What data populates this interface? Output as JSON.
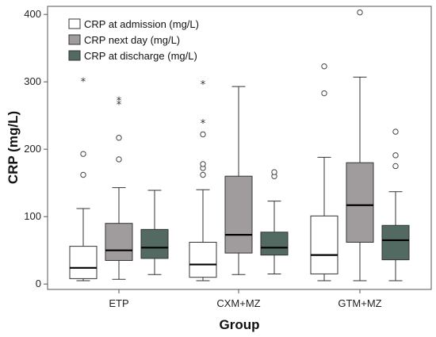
{
  "chart_data": {
    "type": "boxplot",
    "xlabel": "Group",
    "ylabel": "CRP (mg/L)",
    "ylim": [
      -8,
      412
    ],
    "yticks": [
      0,
      100,
      200,
      300,
      400
    ],
    "categories": [
      "ETP",
      "CXM+MZ",
      "GTM+MZ"
    ],
    "legend_position": "top-left",
    "grid": false,
    "series": [
      {
        "name": "CRP at admission (mg/L)",
        "color": "#ffffff",
        "boxes": [
          {
            "min": 5,
            "q1": 8,
            "median": 24,
            "q3": 56,
            "max": 112,
            "outliers": [
              162,
              193
            ],
            "extremes": [
              302
            ]
          },
          {
            "min": 5,
            "q1": 10,
            "median": 29,
            "q3": 62,
            "max": 140,
            "outliers": [
              162,
              172,
              178,
              222
            ],
            "extremes": [
              240,
              298
            ]
          },
          {
            "min": 5,
            "q1": 15,
            "median": 43,
            "q3": 101,
            "max": 188,
            "outliers": [
              283,
              323
            ],
            "extremes": []
          }
        ]
      },
      {
        "name": "CRP next day (mg/L)",
        "color": "#a09c9d",
        "boxes": [
          {
            "min": 7,
            "q1": 35,
            "median": 50,
            "q3": 90,
            "max": 143,
            "outliers": [
              185,
              217
            ],
            "extremes": [
              268,
              274
            ]
          },
          {
            "min": 14,
            "q1": 46,
            "median": 73,
            "q3": 160,
            "max": 293,
            "outliers": [],
            "extremes": []
          },
          {
            "min": 5,
            "q1": 62,
            "median": 117,
            "q3": 180,
            "max": 307,
            "outliers": [
              403
            ],
            "extremes": []
          }
        ]
      },
      {
        "name": "CRP at discharge (mg/L)",
        "color": "#536a63",
        "boxes": [
          {
            "min": 14,
            "q1": 38,
            "median": 54,
            "q3": 81,
            "max": 139,
            "outliers": [],
            "extremes": []
          },
          {
            "min": 15,
            "q1": 43,
            "median": 54,
            "q3": 77,
            "max": 123,
            "outliers": [
              160,
              166
            ],
            "extremes": []
          },
          {
            "min": 5,
            "q1": 36,
            "median": 65,
            "q3": 87,
            "max": 137,
            "outliers": [
              175,
              191,
              226
            ],
            "extremes": []
          }
        ]
      }
    ]
  }
}
